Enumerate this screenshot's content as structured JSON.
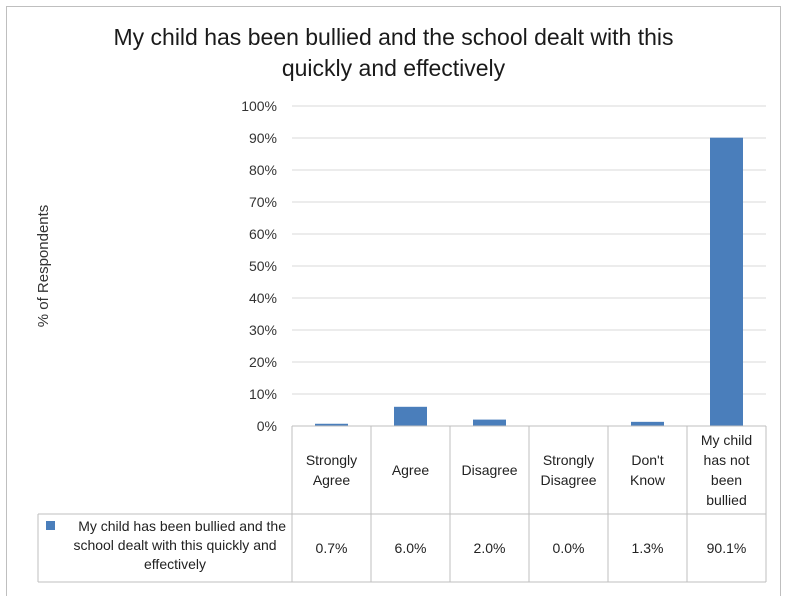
{
  "chart_data": {
    "type": "bar",
    "title_lines": [
      "My child has been bullied and the school dealt with this",
      "quickly and effectively"
    ],
    "ylabel": "% of Respondents",
    "xlabel": "",
    "ylim": [
      0,
      100
    ],
    "y_ticks": [
      "0%",
      "10%",
      "20%",
      "30%",
      "40%",
      "50%",
      "60%",
      "70%",
      "80%",
      "90%",
      "100%"
    ],
    "grid": true,
    "categories": [
      [
        "Strongly",
        "Agree"
      ],
      [
        "Agree"
      ],
      [
        "Disagree"
      ],
      [
        "Strongly",
        "Disagree"
      ],
      [
        "Don't",
        "Know"
      ],
      [
        "My child",
        "has not",
        "been",
        "bullied"
      ]
    ],
    "series": [
      {
        "name_lines": [
          "My child has been bullied and the",
          "school dealt with this quickly and",
          "effectively"
        ],
        "values": [
          0.7,
          6.0,
          2.0,
          0.0,
          1.3,
          90.1
        ],
        "value_labels": [
          "0.7%",
          "6.0%",
          "2.0%",
          "0.0%",
          "1.3%",
          "90.1%"
        ],
        "color": "#4a7ebb"
      }
    ],
    "legend": "data-table"
  }
}
